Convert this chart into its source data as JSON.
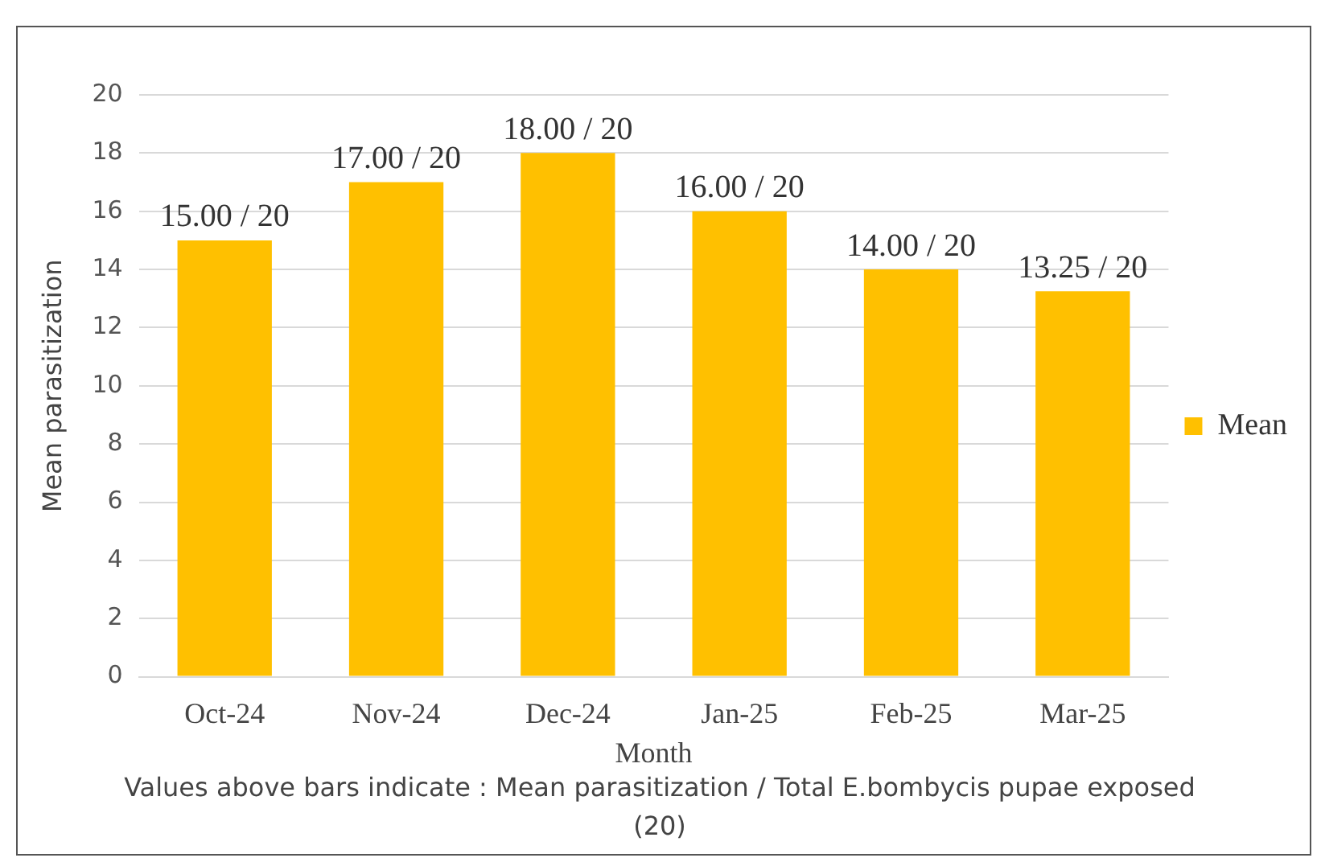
{
  "chart_data": {
    "type": "bar",
    "xlabel": "Month",
    "ylabel": "Mean parasitization",
    "categories": [
      "Oct-24",
      "Nov-24",
      "Dec-24",
      "Jan-25",
      "Feb-25",
      "Mar-25"
    ],
    "series": [
      {
        "name": "Mean",
        "color": "#ffc000",
        "values": [
          15,
          17,
          18,
          16,
          14,
          13.25
        ]
      }
    ],
    "value_labels": [
      "15.00 / 20",
      "17.00 / 20",
      "18.00 / 20",
      "16.00 / 20",
      "14.00 / 20",
      "13.25 / 20"
    ],
    "ylim": [
      0,
      20
    ],
    "yticks": [
      0,
      2,
      4,
      6,
      8,
      10,
      12,
      14,
      16,
      18,
      20
    ],
    "grid": "y",
    "legend": "right",
    "annotations": [
      "Values above bars indicate : Mean parasitization / Total E.bombycis pupae exposed (20)"
    ]
  }
}
